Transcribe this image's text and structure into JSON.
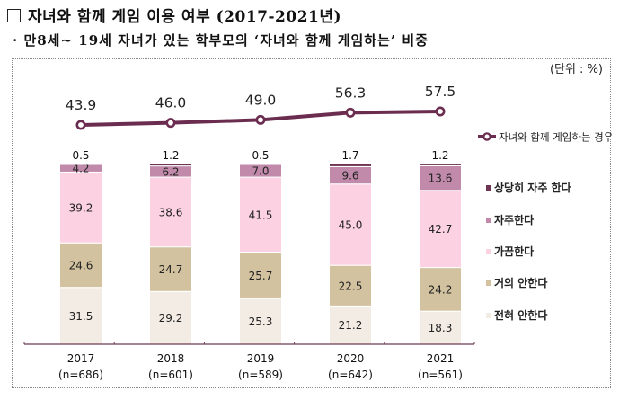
{
  "header": {
    "title": "자녀와 함께 게임 이용 여부 (2017-2021년)",
    "subtitle": "· 만8세~ 19세 자녀가 있는 학부모의 ‘자녀와 함께 게임하는’ 비중",
    "unit": "(단위 : %)"
  },
  "colors": {
    "line": "#6b2d4f",
    "very_often": "#6e3553",
    "often": "#c18aab",
    "sometimes": "#fcd2e2",
    "rarely": "#d3c29f",
    "never": "#f3ece4",
    "axis": "#6b3a55"
  },
  "chart_data": {
    "type": "bar",
    "stacked": true,
    "title": "자녀와 함께 게임 이용 여부 (2017-2021년)",
    "subtitle": "만8세~ 19세 자녀가 있는 학부모의 ‘자녀와 함께 게임하는’ 비중",
    "unit": "%",
    "categories": [
      "2017",
      "2018",
      "2019",
      "2020",
      "2021"
    ],
    "category_sublabels": [
      "(n=686)",
      "(n=601)",
      "(n=589)",
      "(n=642)",
      "(n=561)"
    ],
    "ylim": [
      0,
      100
    ],
    "grid": false,
    "legend_position": "right",
    "series": [
      {
        "name": "전혀 안한다",
        "color_key": "never",
        "values": [
          31.5,
          29.2,
          25.3,
          21.2,
          18.3
        ]
      },
      {
        "name": "거의 안한다",
        "color_key": "rarely",
        "values": [
          24.6,
          24.7,
          25.7,
          22.5,
          24.2
        ]
      },
      {
        "name": "가끔한다",
        "color_key": "sometimes",
        "values": [
          39.2,
          38.6,
          41.5,
          45.0,
          42.7
        ]
      },
      {
        "name": "자주한다",
        "color_key": "often",
        "values": [
          4.2,
          6.2,
          7.0,
          9.6,
          13.6
        ]
      },
      {
        "name": "상당히 자주 한다",
        "color_key": "very_often",
        "values": [
          0.5,
          1.2,
          0.5,
          1.7,
          1.2
        ]
      }
    ],
    "line_series": {
      "name": "자녀와 함께 게임하는 경우",
      "values": [
        43.9,
        46.0,
        49.0,
        56.3,
        57.5
      ]
    },
    "legend_order": [
      "상당히 자주 한다",
      "자주한다",
      "가끔한다",
      "거의 안한다",
      "전혀 안한다"
    ]
  }
}
